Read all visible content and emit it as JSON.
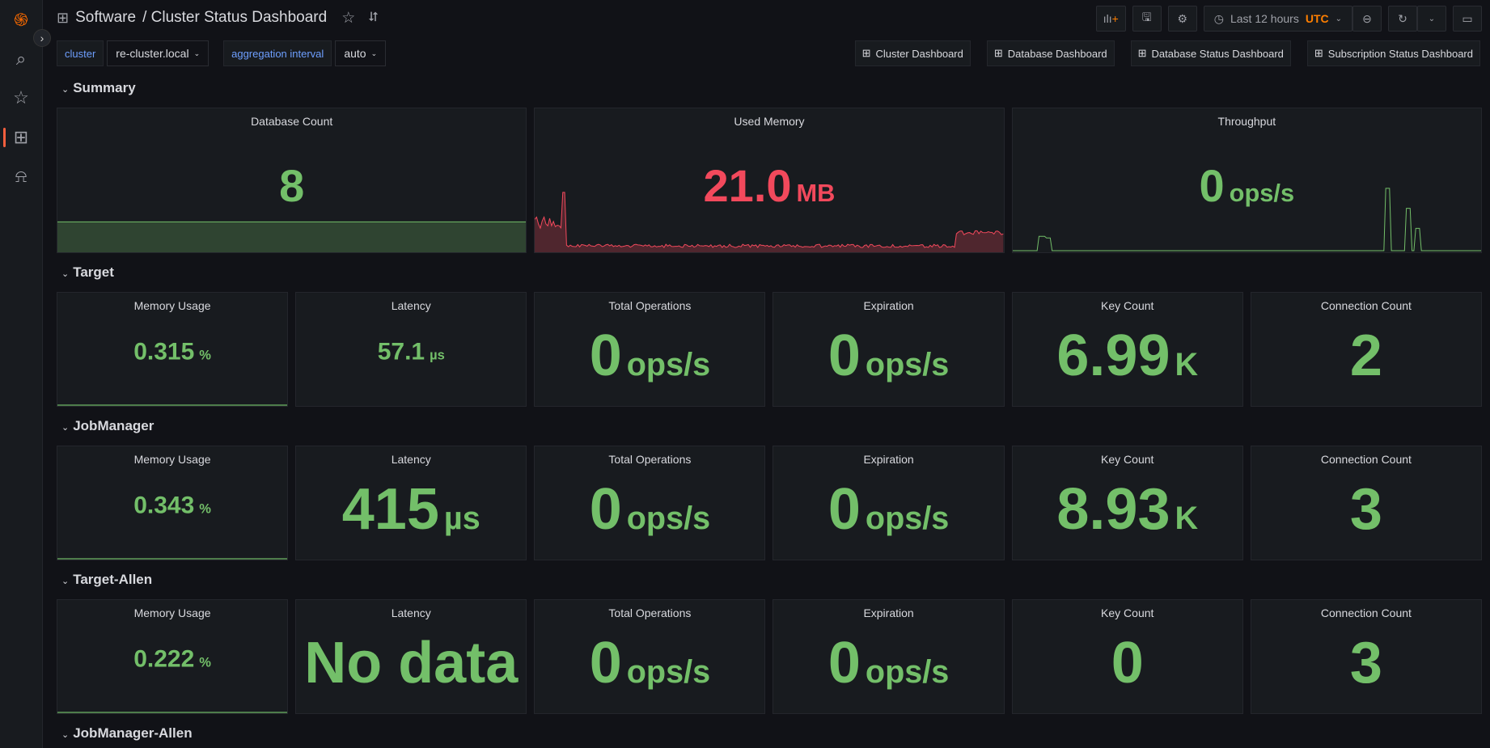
{
  "breadcrumb": {
    "folder": "Software",
    "title": "/ Cluster Status Dashboard"
  },
  "toolbar": {
    "time_range": "Last 12 hours",
    "timezone": "UTC"
  },
  "variables": [
    {
      "label": "cluster",
      "value": "re-cluster.local"
    },
    {
      "label": "aggregation interval",
      "value": "auto"
    }
  ],
  "links": [
    "Cluster Dashboard",
    "Database Dashboard",
    "Database Status Dashboard",
    "Subscription Status Dashboard"
  ],
  "colors": {
    "green": "#73bf69",
    "red": "#f2495c",
    "accent": "#ff7f00"
  },
  "summary": {
    "title": "Summary",
    "panels": [
      {
        "title": "Database Count",
        "value": "8",
        "unit": "",
        "color": "#73bf69",
        "spark": "flat"
      },
      {
        "title": "Used Memory",
        "value": "21.0",
        "unit": "MB",
        "color": "#f2495c",
        "spark": "mem"
      },
      {
        "title": "Throughput",
        "value": "0",
        "unit": "ops/s",
        "color": "#73bf69",
        "spark": "tp"
      }
    ]
  },
  "rows": [
    {
      "title": "Target",
      "panels": [
        {
          "title": "Memory Usage",
          "value": "0.315",
          "unit": "%",
          "small": true
        },
        {
          "title": "Latency",
          "value": "57.1",
          "unit": "µs",
          "small": true
        },
        {
          "title": "Total Operations",
          "value": "0",
          "unit": "ops/s"
        },
        {
          "title": "Expiration",
          "value": "0",
          "unit": "ops/s"
        },
        {
          "title": "Key Count",
          "value": "6.99",
          "unit": "K"
        },
        {
          "title": "Connection Count",
          "value": "2",
          "unit": ""
        }
      ]
    },
    {
      "title": "JobManager",
      "panels": [
        {
          "title": "Memory Usage",
          "value": "0.343",
          "unit": "%",
          "small": true
        },
        {
          "title": "Latency",
          "value": "415",
          "unit": "µs"
        },
        {
          "title": "Total Operations",
          "value": "0",
          "unit": "ops/s"
        },
        {
          "title": "Expiration",
          "value": "0",
          "unit": "ops/s"
        },
        {
          "title": "Key Count",
          "value": "8.93",
          "unit": "K"
        },
        {
          "title": "Connection Count",
          "value": "3",
          "unit": ""
        }
      ]
    },
    {
      "title": "Target-Allen",
      "panels": [
        {
          "title": "Memory Usage",
          "value": "0.222",
          "unit": "%",
          "small": true
        },
        {
          "title": "Latency",
          "value": "No data",
          "unit": ""
        },
        {
          "title": "Total Operations",
          "value": "0",
          "unit": "ops/s"
        },
        {
          "title": "Expiration",
          "value": "0",
          "unit": "ops/s"
        },
        {
          "title": "Key Count",
          "value": "0",
          "unit": ""
        },
        {
          "title": "Connection Count",
          "value": "3",
          "unit": ""
        }
      ]
    }
  ],
  "collapsed_row": {
    "title": "JobManager-Allen"
  }
}
